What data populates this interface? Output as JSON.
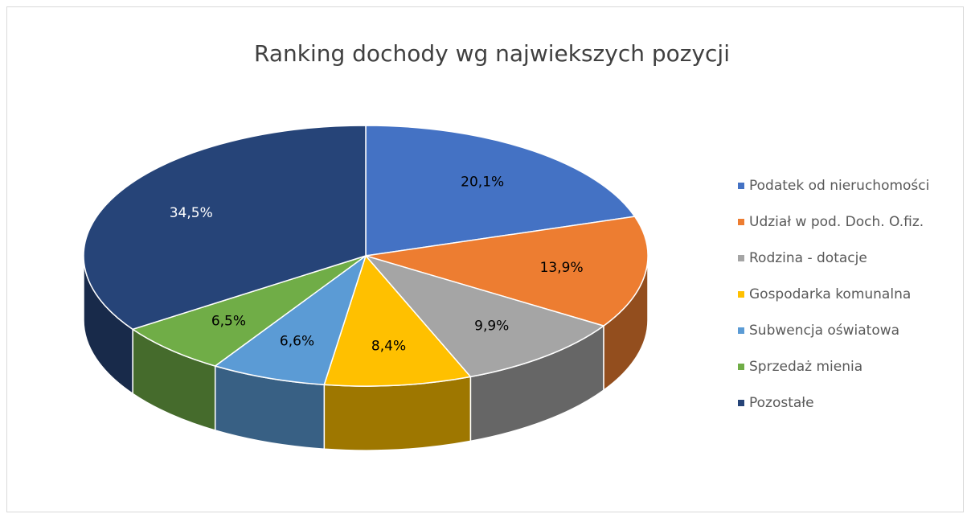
{
  "chart_data": {
    "type": "pie3d",
    "title": "Ranking dochody wg najwiekszych pozycji",
    "categories": [
      "Podatek od nieruchomości",
      "Udział w pod. Doch. O.fiz.",
      "Rodzina - dotacje",
      "Gospodarka komunalna",
      "Subwencja oświatowa",
      "Sprzedaż mienia",
      "Pozostałe"
    ],
    "values": [
      20.1,
      13.9,
      9.9,
      8.4,
      6.6,
      6.5,
      34.5
    ],
    "value_labels": [
      "20,1%",
      "13,9%",
      "9,9%",
      "8,4%",
      "6,6%",
      "6,5%",
      "34,5%"
    ],
    "colors": [
      "#4472c4",
      "#ed7d31",
      "#a5a5a5",
      "#ffc000",
      "#5b9bd5",
      "#70ad47",
      "#264478"
    ],
    "legend": "right"
  }
}
